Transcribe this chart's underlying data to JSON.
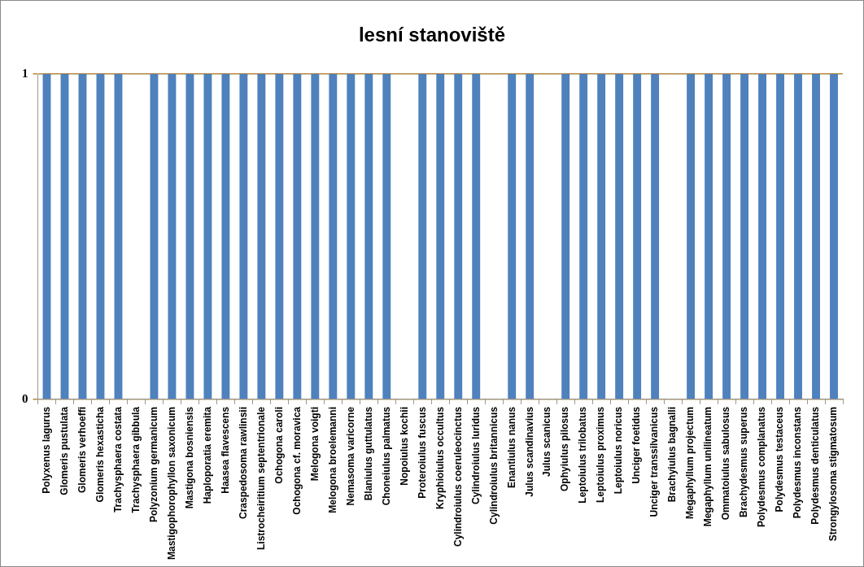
{
  "chart_data": {
    "type": "bar",
    "title": "lesní stanoviště",
    "categories": [
      "Polyxenus lagurus",
      "Glomeris pustulata",
      "Glomeris verhoeffi",
      "Glomeris hexasticha",
      "Trachysphaera costata",
      "Trachysphaera gibbula",
      "Polyzonium germanicum",
      "Mastigophorophyllon saxonicum",
      "Mastigona bosniensis",
      "Haploporatia eremita",
      "Haasea flavescens",
      "Craspedosoma rawlinsii",
      "Listrocheiritium septentrionale",
      "Ochogona caroli",
      "Ochogona cf. moravica",
      "Melogona voigti",
      "Melogona broelemanni",
      "Nemasoma varicorne",
      "Blaniulus guttulatus",
      "Choneiulus palmatus",
      "Nopoiulus kochii",
      "Proteroiulus fuscus",
      "Kryphioiulus occultus",
      "Cylindroiulus coeruleocinctus",
      "Cylindroiulus luridus",
      "Cylindroiulus britannicus",
      "Enantiulus nanus",
      "Julus scandinavius",
      "Julus scanicus",
      "Ophyiulus pilosus",
      "Leptoiulus trilobatus",
      "Leptoiulus proximus",
      "Leptoiulus noricus",
      "Unciger foetidus",
      "Unciger transsilvanicus",
      "Brachyiulus bagnalli",
      "Megaphyllum projectum",
      "Megaphyllum unilineatum",
      "Ommatoiulus sabulosus",
      "Brachydesmus superus",
      "Polydesmus complanatus",
      "Polydesmus testaceus",
      "Polydesmus inconstans",
      "Polydesmus denticulatus",
      "Strongylosoma stigmatosum"
    ],
    "values": [
      1,
      1,
      1,
      1,
      1,
      0,
      1,
      1,
      1,
      1,
      1,
      1,
      1,
      1,
      1,
      1,
      1,
      1,
      1,
      1,
      0,
      1,
      1,
      1,
      1,
      0,
      1,
      1,
      0,
      1,
      1,
      1,
      1,
      1,
      1,
      0,
      1,
      1,
      1,
      1,
      1,
      1,
      1,
      1,
      1
    ],
    "color": "#4f81bd",
    "ylim": [
      0,
      1
    ],
    "yticks": [
      0,
      1
    ],
    "grid": "y",
    "legend": false
  }
}
